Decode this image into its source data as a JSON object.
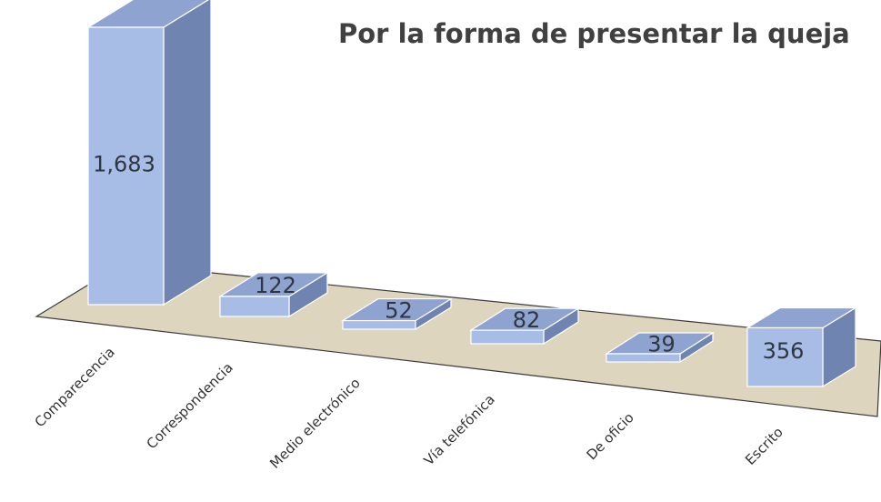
{
  "chart_data": {
    "type": "bar",
    "title": "Por la forma de presentar la queja",
    "categories": [
      "Comparecencia",
      "Correspondencia",
      "Medio electrónico",
      "Vía telefónica",
      "De oficio",
      "Escrito"
    ],
    "values": [
      1683,
      122,
      52,
      82,
      39,
      356
    ],
    "data_labels": [
      "1,683",
      "122",
      "52",
      "82",
      "39",
      "356"
    ],
    "xlabel": "",
    "ylabel": "",
    "grid": false,
    "legend": "none",
    "colors": {
      "bar_front": "#a7bde6",
      "bar_top": "#8ea3d0",
      "bar_side": "#6f84b0",
      "bar_edge": "#ffffff",
      "floor": "#ddd5bd",
      "floor_edge": "#3a3a3a"
    }
  }
}
